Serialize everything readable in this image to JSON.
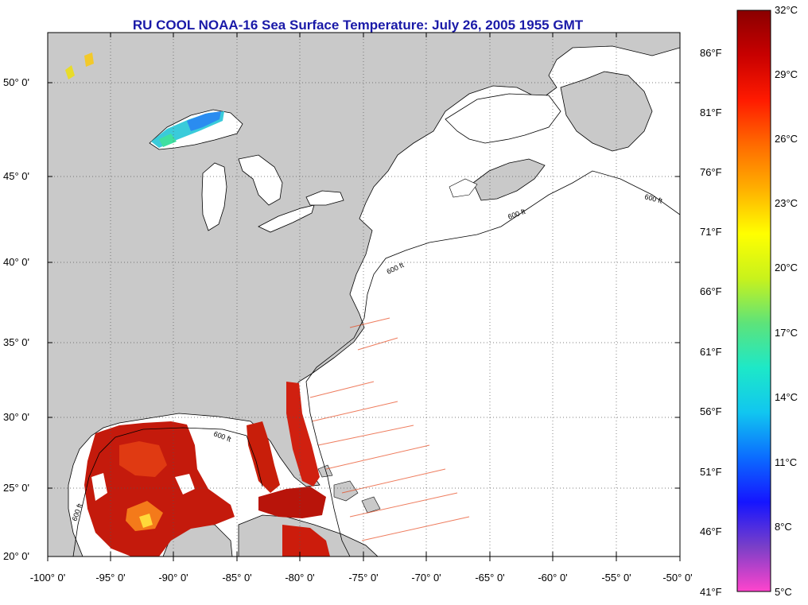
{
  "title": "RU COOL  NOAA-16  Sea Surface Temperature:  July 26, 2005 1955 GMT",
  "latitude_labels": [
    "50° 0'",
    "45° 0'",
    "40° 0'",
    "35° 0'",
    "30° 0'",
    "25° 0'",
    "20° 0'"
  ],
  "longitude_labels": [
    "-100° 0'",
    "-95° 0'",
    "-90° 0'",
    "-85° 0'",
    "-80° 0'",
    "-75° 0'",
    "-70° 0'",
    "-65° 0'",
    "-60° 0'",
    "-55° 0'",
    "-50° 0'"
  ],
  "colorbar": {
    "fahrenheit_labels": [
      "86°F",
      "81°F",
      "76°F",
      "71°F",
      "66°F",
      "61°F",
      "56°F",
      "51°F",
      "46°F",
      "41°F"
    ],
    "celsius_labels": [
      "32°C",
      "29°C",
      "26°C",
      "23°C",
      "20°C",
      "17°C",
      "14°C",
      "11°C",
      "8°C",
      "5°C"
    ],
    "min_c": 5,
    "max_c": 32,
    "stops": [
      "#ff44cc",
      "#7a3fc8",
      "#1515ff",
      "#0b6cff",
      "#11c6f0",
      "#1de8c8",
      "#5de37a",
      "#c8f21c",
      "#ffff00",
      "#ffb000",
      "#ff6a00",
      "#ff1a00",
      "#c80000",
      "#8a0000"
    ]
  },
  "depth_contour_label": "600 ft",
  "colors": {
    "land": "#c9c9c9",
    "water": "#ffffff",
    "sst_hot": "#c81e0a",
    "sst_cool": "#3aa6e8"
  }
}
